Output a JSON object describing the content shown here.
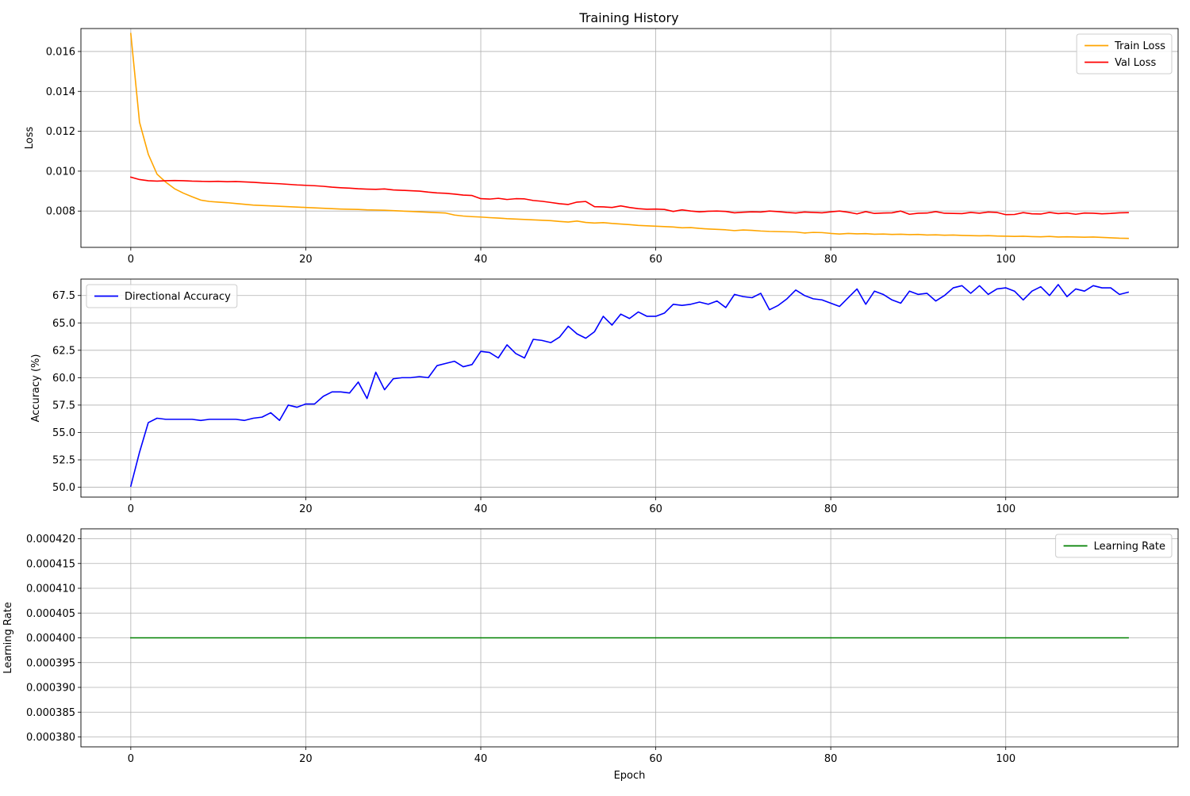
{
  "figure": {
    "title": "Training History"
  },
  "chart_data": [
    {
      "type": "line",
      "title": "Training History",
      "xlabel": "",
      "ylabel": "Loss",
      "xlim": [
        -5.7,
        119.7
      ],
      "ylim": [
        0.00618,
        0.01715
      ],
      "xticks": [
        0,
        20,
        40,
        60,
        80,
        100
      ],
      "xtick_labels": [
        "0",
        "20",
        "40",
        "60",
        "80",
        "100"
      ],
      "yticks": [
        0.008,
        0.01,
        0.012,
        0.014,
        0.016
      ],
      "ytick_labels": [
        "0.008",
        "0.010",
        "0.012",
        "0.014",
        "0.016"
      ],
      "grid": true,
      "legend_position": "upper right",
      "series": [
        {
          "name": "Train Loss",
          "color": "#ffa500",
          "x_start": 0,
          "values": [
            0.0169,
            0.01245,
            0.01085,
            0.00985,
            0.00945,
            0.00912,
            0.0089,
            0.00872,
            0.00855,
            0.00848,
            0.00845,
            0.00842,
            0.00838,
            0.00834,
            0.0083,
            0.00828,
            0.00826,
            0.00824,
            0.00822,
            0.0082,
            0.00818,
            0.00816,
            0.00814,
            0.00812,
            0.0081,
            0.00809,
            0.00808,
            0.00806,
            0.00805,
            0.00804,
            0.00802,
            0.008,
            0.00798,
            0.00796,
            0.00794,
            0.00792,
            0.0079,
            0.0078,
            0.00775,
            0.00772,
            0.0077,
            0.00767,
            0.00765,
            0.00762,
            0.0076,
            0.00758,
            0.00756,
            0.00754,
            0.00752,
            0.00748,
            0.00745,
            0.0075,
            0.00743,
            0.0074,
            0.00742,
            0.00738,
            0.00735,
            0.00732,
            0.00728,
            0.00726,
            0.00724,
            0.00722,
            0.0072,
            0.00716,
            0.00717,
            0.00713,
            0.0071,
            0.00708,
            0.00706,
            0.00702,
            0.00705,
            0.00703,
            0.007,
            0.00698,
            0.00697,
            0.00696,
            0.00695,
            0.0069,
            0.00693,
            0.00692,
            0.00688,
            0.00685,
            0.00688,
            0.00686,
            0.00687,
            0.00684,
            0.00685,
            0.00683,
            0.00684,
            0.00682,
            0.00683,
            0.0068,
            0.00681,
            0.00679,
            0.0068,
            0.00678,
            0.00677,
            0.00676,
            0.00677,
            0.00675,
            0.00674,
            0.00673,
            0.00674,
            0.00672,
            0.00671,
            0.00673,
            0.0067,
            0.00671,
            0.0067,
            0.00669,
            0.0067,
            0.00668,
            0.00666,
            0.00664,
            0.00663
          ]
        },
        {
          "name": "Val Loss",
          "color": "#ff0000",
          "x_start": 0,
          "values": [
            0.0097,
            0.00958,
            0.00952,
            0.0095,
            0.00952,
            0.00953,
            0.00952,
            0.0095,
            0.00949,
            0.00948,
            0.00949,
            0.00947,
            0.00948,
            0.00946,
            0.00944,
            0.00941,
            0.00939,
            0.00937,
            0.00934,
            0.00931,
            0.00929,
            0.00927,
            0.00924,
            0.0092,
            0.00917,
            0.00915,
            0.00912,
            0.0091,
            0.00909,
            0.00911,
            0.00906,
            0.00904,
            0.00902,
            0.009,
            0.00895,
            0.00891,
            0.00889,
            0.00885,
            0.0088,
            0.00878,
            0.00862,
            0.0086,
            0.00864,
            0.00858,
            0.00862,
            0.00861,
            0.00853,
            0.00849,
            0.00843,
            0.00837,
            0.00833,
            0.00845,
            0.00848,
            0.00822,
            0.00821,
            0.00818,
            0.00826,
            0.00818,
            0.00812,
            0.00809,
            0.0081,
            0.00808,
            0.00798,
            0.00806,
            0.008,
            0.00796,
            0.00799,
            0.008,
            0.00798,
            0.00791,
            0.00794,
            0.00796,
            0.00795,
            0.008,
            0.00797,
            0.00793,
            0.0079,
            0.00795,
            0.00793,
            0.00791,
            0.00796,
            0.008,
            0.00794,
            0.00786,
            0.00797,
            0.00788,
            0.0079,
            0.00791,
            0.008,
            0.00784,
            0.00789,
            0.0079,
            0.00797,
            0.00789,
            0.00788,
            0.00787,
            0.00793,
            0.00789,
            0.00795,
            0.00793,
            0.00782,
            0.00783,
            0.00792,
            0.00786,
            0.00785,
            0.00793,
            0.00787,
            0.0079,
            0.00784,
            0.0079,
            0.00789,
            0.00786,
            0.00788,
            0.00791,
            0.00792
          ]
        }
      ]
    },
    {
      "type": "line",
      "title": "",
      "xlabel": "",
      "ylabel": "Accuracy (%)",
      "xlim": [
        -5.7,
        119.7
      ],
      "ylim": [
        49.1,
        69.0
      ],
      "xticks": [
        0,
        20,
        40,
        60,
        80,
        100
      ],
      "xtick_labels": [
        "0",
        "20",
        "40",
        "60",
        "80",
        "100"
      ],
      "yticks": [
        50.0,
        52.5,
        55.0,
        57.5,
        60.0,
        62.5,
        65.0,
        67.5
      ],
      "ytick_labels": [
        "50.0",
        "52.5",
        "55.0",
        "57.5",
        "60.0",
        "62.5",
        "65.0",
        "67.5"
      ],
      "grid": true,
      "legend_position": "upper left",
      "series": [
        {
          "name": "Directional Accuracy",
          "color": "#0000ff",
          "x_start": 0,
          "values": [
            50.1,
            53.2,
            55.9,
            56.3,
            56.2,
            56.2,
            56.2,
            56.2,
            56.1,
            56.2,
            56.2,
            56.2,
            56.2,
            56.1,
            56.3,
            56.4,
            56.8,
            56.1,
            57.5,
            57.3,
            57.6,
            57.6,
            58.3,
            58.7,
            58.7,
            58.6,
            59.6,
            58.1,
            60.5,
            58.9,
            59.9,
            60.0,
            60.0,
            60.1,
            60.0,
            61.1,
            61.3,
            61.5,
            61.0,
            61.2,
            62.4,
            62.3,
            61.8,
            63.0,
            62.2,
            61.8,
            63.5,
            63.4,
            63.2,
            63.7,
            64.7,
            64.0,
            63.6,
            64.2,
            65.6,
            64.8,
            65.8,
            65.4,
            66.0,
            65.6,
            65.6,
            65.9,
            66.7,
            66.6,
            66.7,
            66.9,
            66.7,
            67.0,
            66.4,
            67.6,
            67.4,
            67.3,
            67.7,
            66.2,
            66.6,
            67.2,
            68.0,
            67.5,
            67.2,
            67.1,
            66.8,
            66.5,
            67.3,
            68.1,
            66.7,
            67.9,
            67.6,
            67.1,
            66.8,
            67.9,
            67.6,
            67.7,
            67.0,
            67.5,
            68.2,
            68.4,
            67.7,
            68.4,
            67.6,
            68.1,
            68.2,
            67.9,
            67.1,
            67.9,
            68.3,
            67.5,
            68.5,
            67.4,
            68.1,
            67.9,
            68.4,
            68.2,
            68.2,
            67.6,
            67.8
          ]
        }
      ]
    },
    {
      "type": "line",
      "title": "",
      "xlabel": "Epoch",
      "ylabel": "Learning Rate",
      "xlim": [
        -5.7,
        119.7
      ],
      "ylim": [
        0.000378,
        0.000422
      ],
      "xticks": [
        0,
        20,
        40,
        60,
        80,
        100
      ],
      "xtick_labels": [
        "0",
        "20",
        "40",
        "60",
        "80",
        "100"
      ],
      "yticks": [
        0.00038,
        0.000385,
        0.00039,
        0.000395,
        0.0004,
        0.000405,
        0.00041,
        0.000415,
        0.00042
      ],
      "ytick_labels": [
        "0.000380",
        "0.000385",
        "0.000390",
        "0.000395",
        "0.000400",
        "0.000405",
        "0.000410",
        "0.000415",
        "0.000420"
      ],
      "grid": true,
      "legend_position": "upper right",
      "series": [
        {
          "name": "Learning Rate",
          "color": "#008000",
          "x": [
            0,
            114
          ],
          "values": [
            0.0004,
            0.0004
          ]
        }
      ]
    }
  ]
}
